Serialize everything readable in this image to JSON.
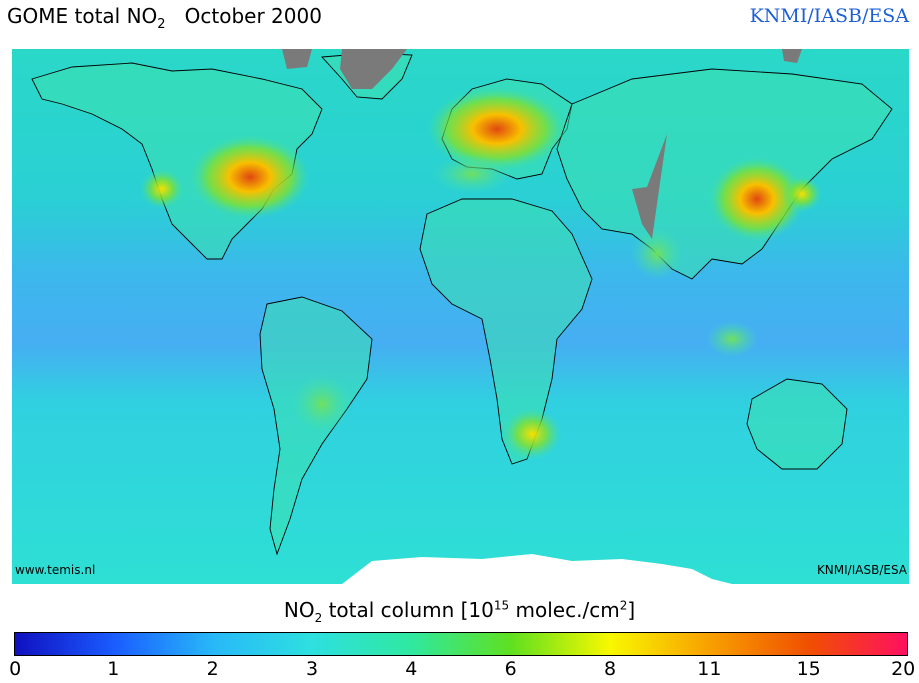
{
  "title": {
    "prefix": "GOME total NO",
    "sub": "2",
    "period": "October 2000"
  },
  "credit_top": "KNMI/IASB/ESA",
  "map": {
    "label_left": "www.temis.nl",
    "label_right": "KNMI/IASB/ESA"
  },
  "colorbar": {
    "title_prefix": "NO",
    "title_sub": "2",
    "title_mid": "total column [10",
    "title_sup": "15",
    "title_unit": "molec./cm",
    "title_sup2": "2",
    "title_end": "]",
    "ticks": [
      "0",
      "1",
      "2",
      "3",
      "4",
      "6",
      "8",
      "11",
      "15",
      "20"
    ],
    "colors": [
      "#1010c0",
      "#1a5cff",
      "#28b8f8",
      "#2ee0e0",
      "#2fe8a0",
      "#5fe020",
      "#f8f800",
      "#f8a000",
      "#f05000",
      "#ff1060"
    ]
  },
  "regions": [
    {
      "name": "eastern-us",
      "value": "high"
    },
    {
      "name": "western-europe",
      "value": "high"
    },
    {
      "name": "east-china",
      "value": "high"
    },
    {
      "name": "southern-africa",
      "value": "moderate"
    },
    {
      "name": "central-south-america",
      "value": "moderate"
    }
  ]
}
